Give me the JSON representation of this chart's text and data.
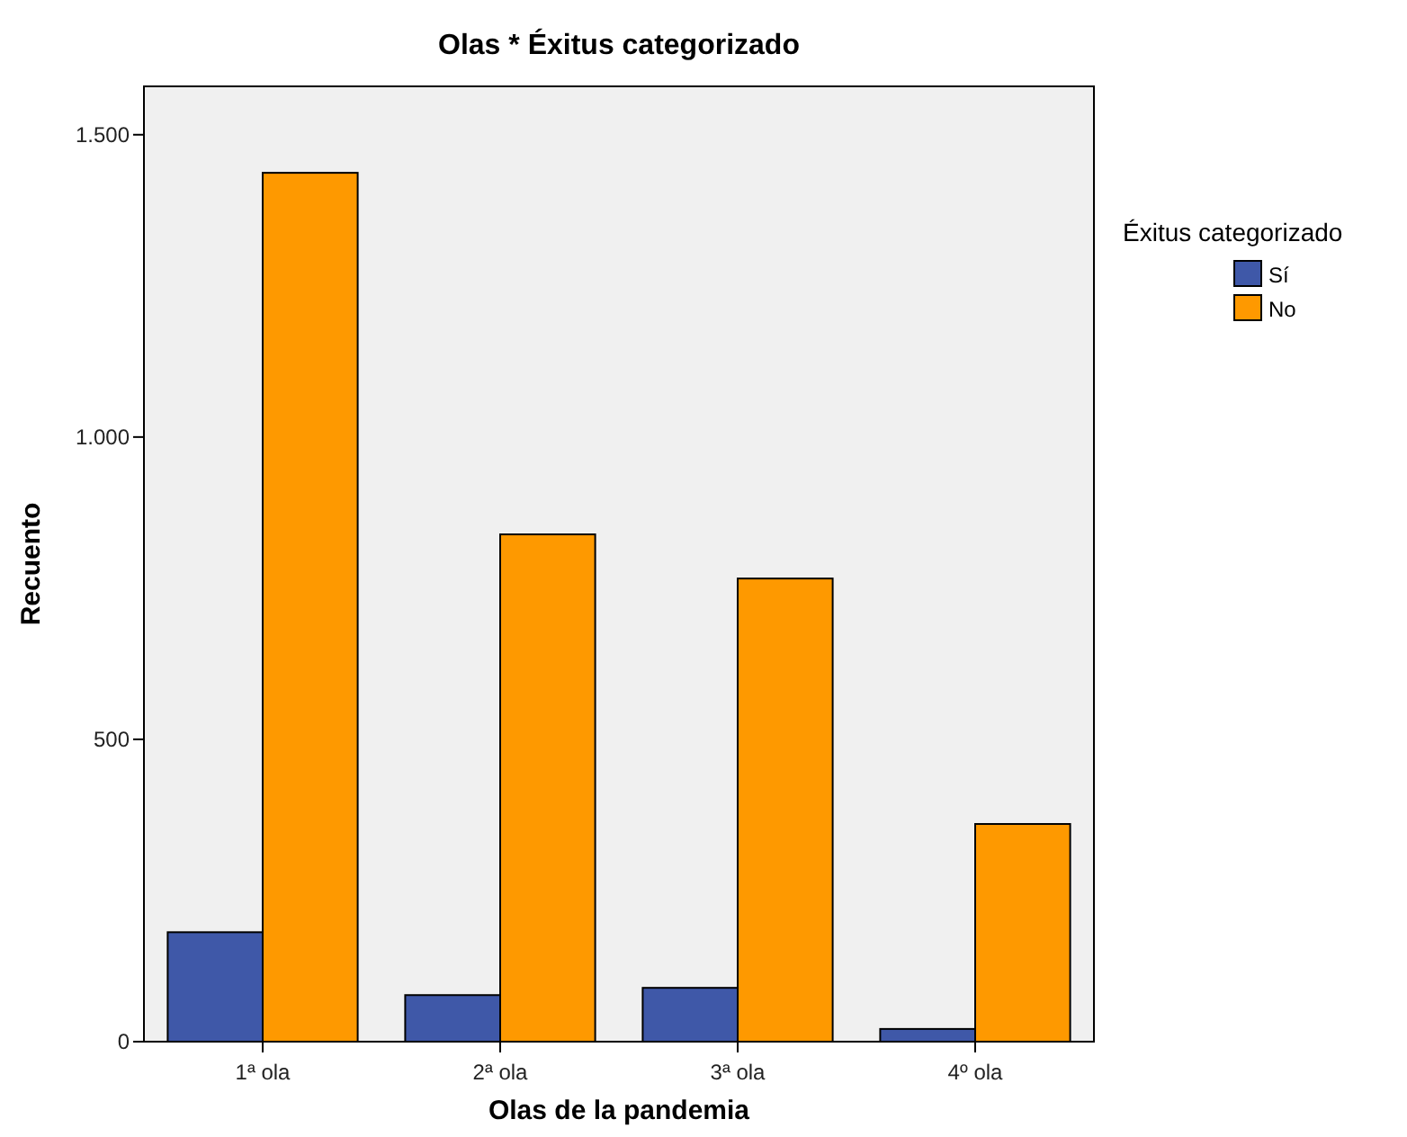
{
  "chart_data": {
    "type": "bar",
    "title": "Olas * Éxitus categorizado",
    "xlabel": "Olas de la pandemia",
    "ylabel": "Recuento",
    "legend_title": "Éxitus categorizado",
    "categories": [
      "1ª ola",
      "2ª ola",
      "3ª ola",
      "4º ola"
    ],
    "series": [
      {
        "name": "Sí",
        "color": "#3f58a8",
        "values": [
          181,
          77,
          89,
          21
        ]
      },
      {
        "name": "No",
        "color": "#fe9900",
        "values": [
          1437,
          839,
          766,
          360
        ]
      }
    ],
    "ylim": [
      0,
      1580
    ],
    "yticks": [
      {
        "value": 0,
        "label": "0"
      },
      {
        "value": 500,
        "label": "500"
      },
      {
        "value": 1000,
        "label": "1.000"
      },
      {
        "value": 1500,
        "label": "1.500"
      }
    ],
    "legend": "right",
    "grid": false
  }
}
